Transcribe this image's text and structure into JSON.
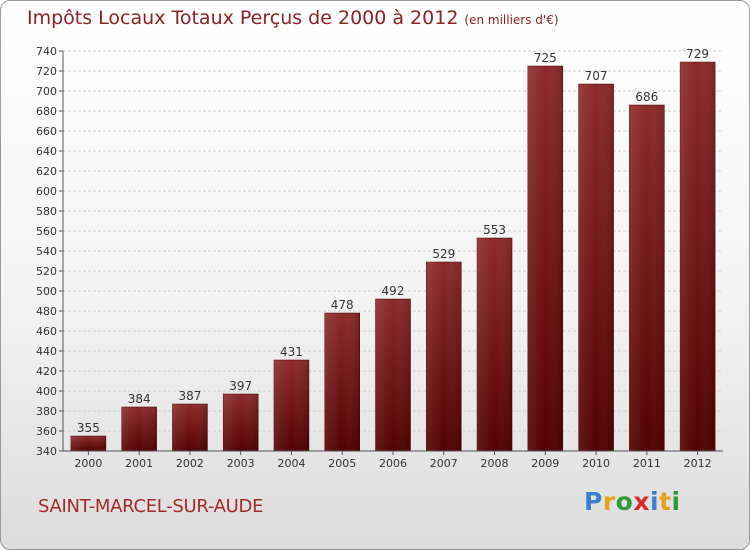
{
  "title": "Impôts Locaux Totaux Perçus de 2000 à 2012",
  "unit": "(en milliers d'€)",
  "commune": "SAINT-MARCEL-SUR-AUDE",
  "brand": {
    "letters": [
      "P",
      "r",
      "o",
      "x",
      "i",
      "t",
      "i"
    ],
    "colors": [
      "#3a7fd0",
      "#e8a21a",
      "#2a9a3a",
      "#d42a2a",
      "#3a7fd0",
      "#e8a21a",
      "#2a9a3a"
    ]
  },
  "colors": {
    "bar": "#7a1515",
    "title": "#8a2323"
  },
  "chart_data": {
    "type": "bar",
    "categories": [
      "2000",
      "2001",
      "2002",
      "2003",
      "2004",
      "2005",
      "2006",
      "2007",
      "2008",
      "2009",
      "2010",
      "2011",
      "2012"
    ],
    "values": [
      355,
      384,
      387,
      397,
      431,
      478,
      492,
      529,
      553,
      725,
      707,
      686,
      729
    ],
    "ylim": [
      340,
      740
    ],
    "ytick_step": 20,
    "grid": true
  }
}
